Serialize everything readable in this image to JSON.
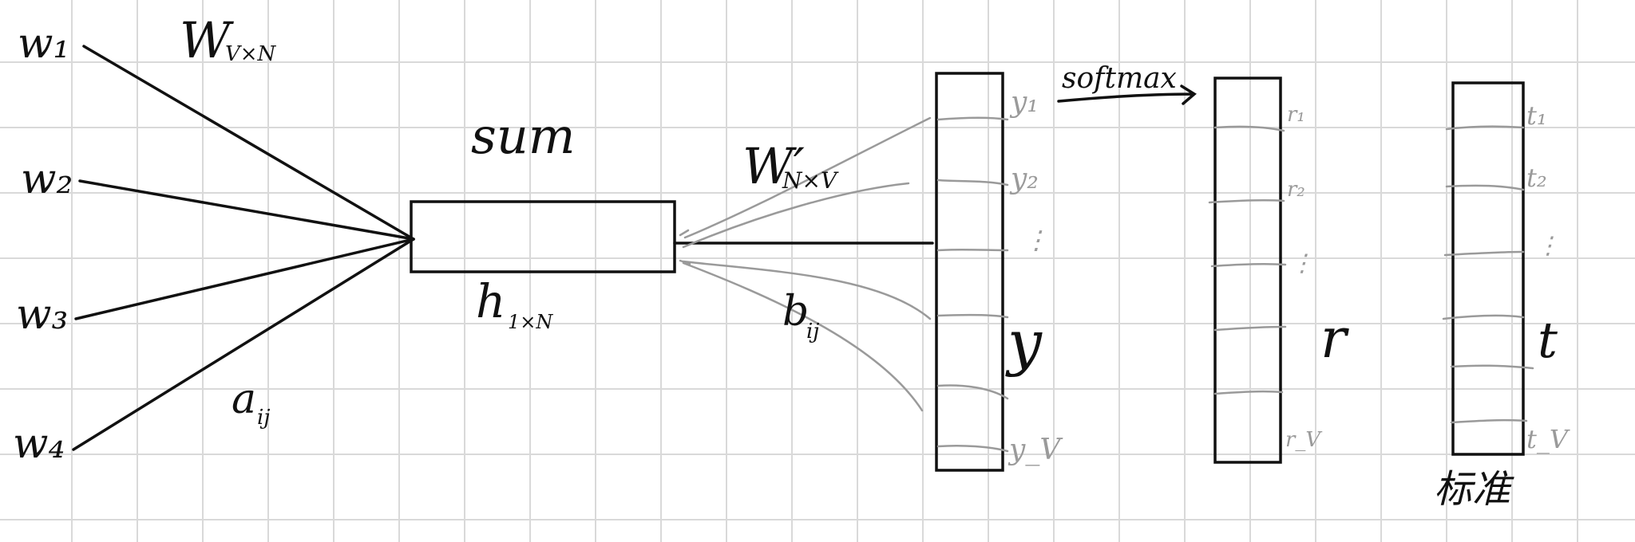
{
  "labels": {
    "inputs": [
      "w₁",
      "w₂",
      "w₃",
      "w₄"
    ],
    "weight_in": "W",
    "weight_in_sub": "V×N",
    "edge_in": "a",
    "edge_in_sub": "ij",
    "sum": "sum",
    "hidden": "h",
    "hidden_sub": "1×N",
    "weight_out": "W′",
    "weight_out_sub": "N×V",
    "edge_out": "b",
    "edge_out_sub": "ij",
    "softmax": "softmax",
    "y_vector": "y",
    "r_vector": "r",
    "t_vector": "t",
    "standard": "标准"
  },
  "y_items": [
    "y₁",
    "y₂",
    "⋮",
    "y_V"
  ],
  "r_items": [
    "r₁",
    "r₂",
    "⋮",
    "r_V"
  ],
  "t_items": [
    "t₁",
    "t₂",
    "⋮",
    "t_V"
  ],
  "colors": {
    "ink": "#111111",
    "pencil": "#9a9a9a",
    "grid": "#d9d9d9"
  }
}
